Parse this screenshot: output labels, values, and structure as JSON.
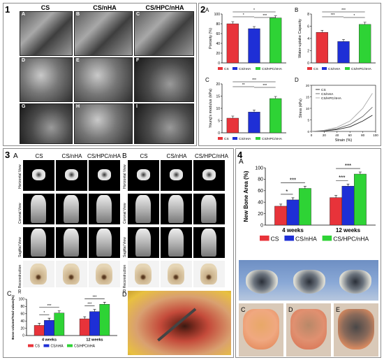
{
  "panels": {
    "p1": {
      "number": "1",
      "cols": [
        "CS",
        "CS/nHA",
        "CS/HPC/nHA"
      ],
      "tiles": [
        "A",
        "B",
        "C",
        "D",
        "E",
        "F",
        "G",
        "H",
        "I"
      ]
    },
    "p2": {
      "number": "2",
      "subpanels": [
        "A",
        "B",
        "C",
        "D"
      ]
    },
    "p3": {
      "number": "3",
      "left_label": "A",
      "right_label": "B",
      "cols": [
        "CS",
        "CS/nHA",
        "CS/HPC/nHA"
      ],
      "rows": [
        "Horizontal View",
        "Coronal View",
        "Sagittal View",
        "3D Reconstruction"
      ],
      "chart_label": "C",
      "photo_label": "D"
    },
    "p4": {
      "number": "4",
      "chart_label": "A",
      "photo_labels": [
        "B",
        "C",
        "D",
        "E"
      ]
    }
  },
  "colors": {
    "cs": "#e8333a",
    "csnha": "#1e2fd6",
    "cshpc": "#2ed335"
  },
  "chart_data": [
    {
      "id": "porosity",
      "type": "bar",
      "label": "A",
      "categories": [
        "CS",
        "CS/nHA",
        "CS/HPC/nHA"
      ],
      "values": [
        80,
        70,
        92
      ],
      "ylabel": "Porosity (%)",
      "ylim": [
        0,
        100
      ],
      "yticks": [
        0,
        20,
        40,
        60,
        80,
        100
      ],
      "significance": [
        "*",
        "*",
        "***"
      ],
      "legend": [
        "CS",
        "CS/nHA",
        "CS/HPC/nHA"
      ]
    },
    {
      "id": "water",
      "type": "bar",
      "label": "B",
      "categories": [
        "CS",
        "CS/nHA",
        "CS/HPC/nHA"
      ],
      "values": [
        5.0,
        3.5,
        6.3
      ],
      "ylabel": "Water-uptake Capacity",
      "ylim": [
        0,
        8
      ],
      "yticks": [
        0,
        2,
        4,
        6,
        8
      ],
      "significance": [
        "***",
        "***",
        "*"
      ],
      "legend": [
        "CS",
        "CS/nHA",
        "CS/HPC/nHA"
      ]
    },
    {
      "id": "youngs",
      "type": "bar",
      "label": "C",
      "categories": [
        "CS",
        "CS/nHA",
        "CS/HPC/nHA"
      ],
      "values": [
        6,
        8.5,
        14
      ],
      "ylabel": "Young's modulus (kPa)",
      "ylim": [
        0,
        20
      ],
      "yticks": [
        0,
        5,
        10,
        15,
        20
      ],
      "significance": [
        "**",
        "***",
        "***"
      ],
      "legend": [
        "CS",
        "CS/nHA",
        "CS/HPC/nHA"
      ]
    },
    {
      "id": "stressstrain",
      "type": "line",
      "label": "D",
      "xlabel": "Strain (%)",
      "ylabel": "Stress (kPa)",
      "xlim": [
        0,
        100
      ],
      "ylim": [
        0,
        20
      ],
      "xticks": [
        0,
        20,
        40,
        60,
        80,
        100
      ],
      "yticks": [
        0,
        5,
        10,
        15,
        20
      ],
      "series": [
        {
          "name": "CS",
          "x": [
            0,
            20,
            40,
            60,
            80,
            95
          ],
          "y": [
            0,
            0.2,
            0.8,
            2,
            4.5,
            7
          ]
        },
        {
          "name": "CS/nHA",
          "x": [
            0,
            20,
            40,
            60,
            80,
            95
          ],
          "y": [
            0,
            0.3,
            1.2,
            3,
            6.5,
            10.5
          ]
        },
        {
          "name": "CS/HPC/nHA",
          "x": [
            0,
            20,
            40,
            60,
            80,
            95
          ],
          "y": [
            0,
            0.5,
            1.8,
            4.5,
            10,
            16.5
          ]
        }
      ]
    },
    {
      "id": "bv",
      "type": "bar",
      "label": "C",
      "categories": [
        "4 weeks",
        "12 weeks"
      ],
      "ylabel": "Bone volume/Total values(%)",
      "ylim": [
        0,
        100
      ],
      "yticks": [
        0,
        20,
        40,
        60,
        80,
        100
      ],
      "series": [
        {
          "name": "CS",
          "values": [
            28,
            46
          ]
        },
        {
          "name": "CS/nHA",
          "values": [
            42,
            66
          ]
        },
        {
          "name": "CS/HPC/nHA",
          "values": [
            62,
            86
          ]
        }
      ],
      "significance": [
        "*",
        "***",
        "***",
        "***"
      ]
    },
    {
      "id": "nba",
      "type": "bar",
      "label": "A",
      "categories": [
        "4 weeks",
        "12 weeks"
      ],
      "ylabel": "New Bone Area (%)",
      "ylim": [
        0,
        100
      ],
      "yticks": [
        0,
        20,
        40,
        60,
        80,
        100
      ],
      "series": [
        {
          "name": "CS",
          "values": [
            33,
            48
          ]
        },
        {
          "name": "CS/nHA",
          "values": [
            44,
            68
          ]
        },
        {
          "name": "CS/HPC/nHA",
          "values": [
            64,
            89
          ]
        }
      ],
      "significance": [
        "*",
        "***",
        "***",
        "***"
      ]
    }
  ]
}
